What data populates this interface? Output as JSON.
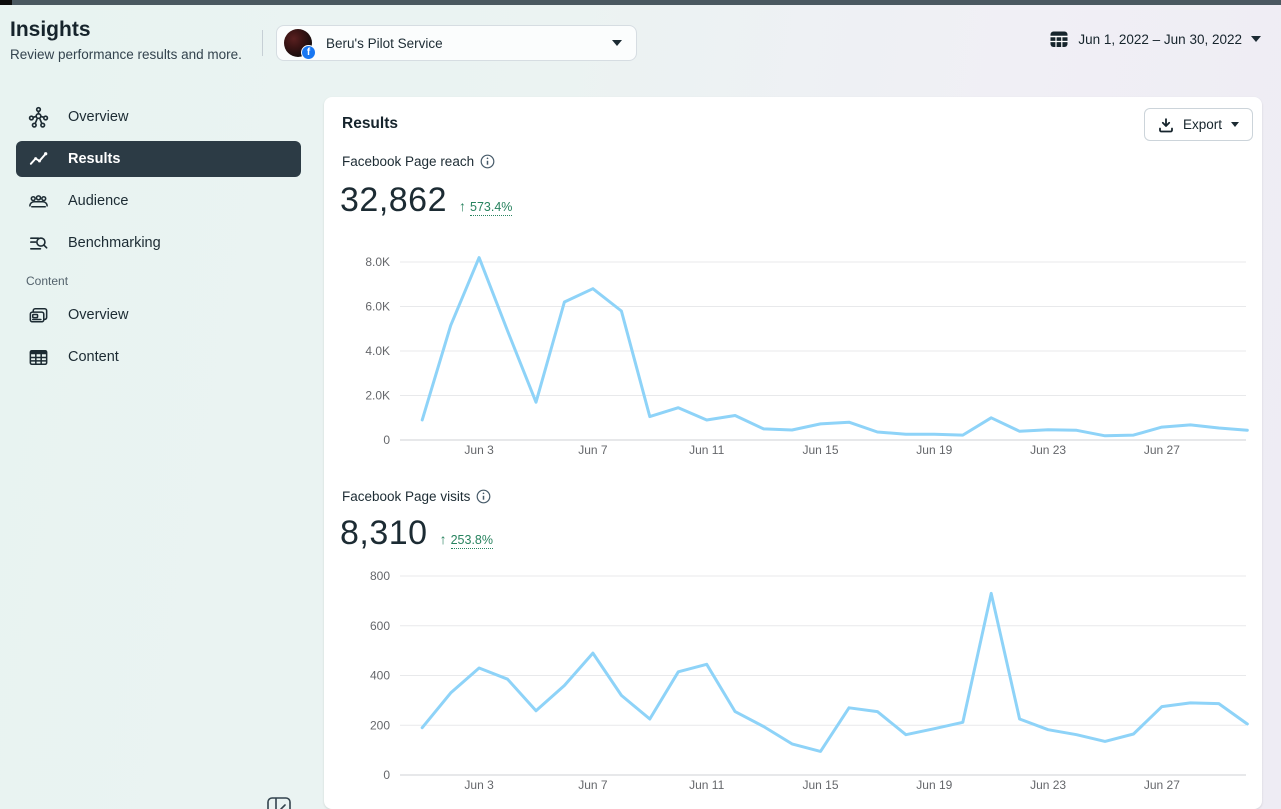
{
  "header": {
    "title": "Insights",
    "subtitle": "Review performance results and more.",
    "account": {
      "name": "Beru's Pilot Service"
    },
    "date_range": "Jun 1, 2022 – Jun 30, 2022"
  },
  "sidebar": {
    "items": [
      {
        "label": "Overview",
        "selected": false
      },
      {
        "label": "Results",
        "selected": true
      },
      {
        "label": "Audience",
        "selected": false
      },
      {
        "label": "Benchmarking",
        "selected": false
      }
    ],
    "section_label": "Content",
    "content_items": [
      {
        "label": "Overview"
      },
      {
        "label": "Content"
      }
    ]
  },
  "main": {
    "title": "Results",
    "export_label": "Export",
    "metrics": [
      {
        "label": "Facebook Page reach",
        "value": "32,862",
        "arrow": "↑",
        "delta": "573.4%",
        "direction": "up"
      },
      {
        "label": "Facebook Page visits",
        "value": "8,310",
        "arrow": "↑",
        "delta": "253.8%",
        "direction": "up"
      }
    ]
  },
  "chart_data": [
    {
      "type": "line",
      "title": "Facebook Page reach",
      "categories": [
        "Jun 1",
        "Jun 2",
        "Jun 3",
        "Jun 4",
        "Jun 5",
        "Jun 6",
        "Jun 7",
        "Jun 8",
        "Jun 9",
        "Jun 10",
        "Jun 11",
        "Jun 12",
        "Jun 13",
        "Jun 14",
        "Jun 15",
        "Jun 16",
        "Jun 17",
        "Jun 18",
        "Jun 19",
        "Jun 20",
        "Jun 21",
        "Jun 22",
        "Jun 23",
        "Jun 24",
        "Jun 25",
        "Jun 26",
        "Jun 27",
        "Jun 28",
        "Jun 29",
        "Jun 30"
      ],
      "values": [
        900,
        5150,
        8200,
        4900,
        1700,
        6200,
        6800,
        5800,
        1050,
        1450,
        900,
        1100,
        500,
        450,
        725,
        800,
        360,
        260,
        260,
        220,
        1000,
        390,
        460,
        435,
        190,
        220,
        580,
        680,
        540,
        435
      ],
      "ylim": [
        0,
        8000
      ],
      "yticks": {
        "labels_top_down": [
          "8.0K",
          "6.0K",
          "4.0K",
          "2.0K",
          "0"
        ],
        "values_top_down": [
          8000,
          6000,
          4000,
          2000,
          0
        ]
      },
      "xticks": {
        "labels": [
          "Jun 3",
          "Jun 7",
          "Jun 11",
          "Jun 15",
          "Jun 19",
          "Jun 23",
          "Jun 27"
        ],
        "days": [
          3,
          7,
          11,
          15,
          19,
          23,
          27
        ]
      },
      "grid": true,
      "legend": false
    },
    {
      "type": "line",
      "title": "Facebook Page visits",
      "categories": [
        "Jun 1",
        "Jun 2",
        "Jun 3",
        "Jun 4",
        "Jun 5",
        "Jun 6",
        "Jun 7",
        "Jun 8",
        "Jun 9",
        "Jun 10",
        "Jun 11",
        "Jun 12",
        "Jun 13",
        "Jun 14",
        "Jun 15",
        "Jun 16",
        "Jun 17",
        "Jun 18",
        "Jun 19",
        "Jun 20",
        "Jun 21",
        "Jun 22",
        "Jun 23",
        "Jun 24",
        "Jun 25",
        "Jun 26",
        "Jun 27",
        "Jun 28",
        "Jun 29",
        "Jun 30"
      ],
      "values": [
        190,
        330,
        430,
        385,
        258,
        360,
        490,
        320,
        225,
        415,
        445,
        255,
        195,
        125,
        95,
        270,
        255,
        162,
        186,
        212,
        730,
        225,
        182,
        162,
        135,
        165,
        275,
        290,
        287,
        205
      ],
      "ylim": [
        0,
        800
      ],
      "yticks": {
        "labels_top_down": [
          "800",
          "600",
          "400",
          "200",
          "0"
        ],
        "values_top_down": [
          800,
          600,
          400,
          200,
          0
        ]
      },
      "xticks": {
        "labels": [
          "Jun 3",
          "Jun 7",
          "Jun 11",
          "Jun 15",
          "Jun 19",
          "Jun 23",
          "Jun 27"
        ],
        "days": [
          3,
          7,
          11,
          15,
          19,
          23,
          27
        ]
      },
      "grid": true,
      "legend": false
    }
  ],
  "colors": {
    "chart_line": "#8ed3f8",
    "positive_green": "#28835f",
    "facebook_blue": "#1877f2",
    "selected_item_bg": "#2c3b45",
    "topbar": "#4a5860"
  }
}
